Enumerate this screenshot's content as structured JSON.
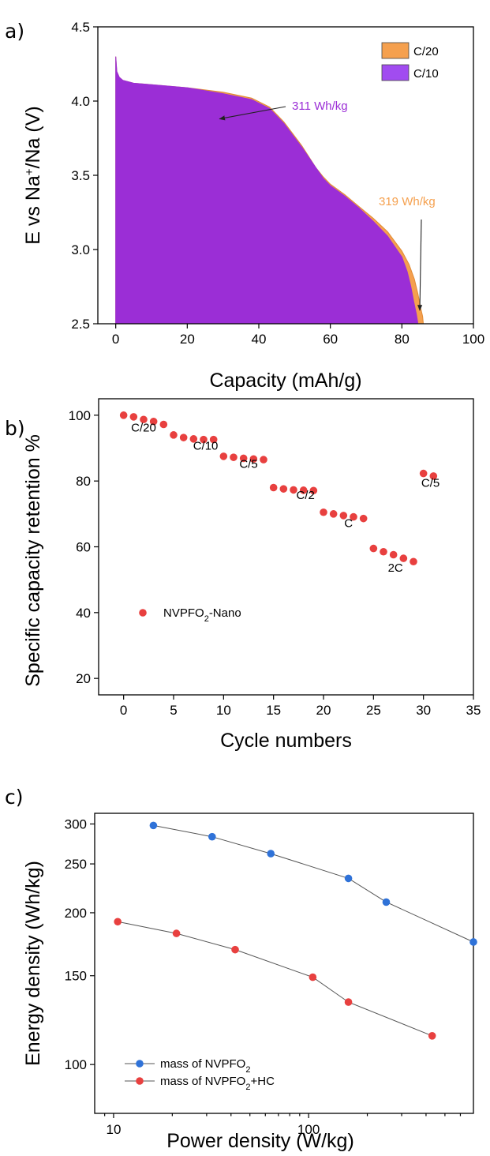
{
  "colors": {
    "c20": "#f5a04e",
    "c10": "#9b2ed6",
    "c10_legend": "#a14cf0",
    "red_series": "#e8403f",
    "blue_series": "#2f72d8",
    "connector": "#555555"
  },
  "chart_data": [
    {
      "panel": "a)",
      "type": "area",
      "ylabel_parts": [
        "E vs Na",
        "+",
        "/Na (V)"
      ],
      "xlabel": "Capacity (mAh/g)",
      "xlim": [
        -5,
        100
      ],
      "ylim": [
        2.5,
        4.5
      ],
      "xticks": [
        0,
        20,
        40,
        60,
        80,
        100
      ],
      "yticks": [
        2.5,
        3.0,
        3.5,
        4.0,
        4.5
      ],
      "ytick_labels": [
        "2.5",
        "3.0",
        "3.5",
        "4.0",
        "4.5"
      ],
      "legend": [
        "C/20",
        "C/10"
      ],
      "series": [
        {
          "name": "C/20",
          "x": [
            0,
            0.3,
            1,
            2,
            5,
            10,
            20,
            30,
            38,
            43,
            47,
            52,
            56,
            58,
            60,
            64,
            68,
            72,
            76,
            80,
            82,
            83.5,
            84.5,
            85.3,
            85.8,
            86
          ],
          "y": [
            4.3,
            4.2,
            4.16,
            4.14,
            4.12,
            4.11,
            4.09,
            4.06,
            4.02,
            3.96,
            3.86,
            3.7,
            3.55,
            3.49,
            3.44,
            3.37,
            3.29,
            3.21,
            3.12,
            2.99,
            2.9,
            2.8,
            2.7,
            2.6,
            2.55,
            2.5
          ]
        },
        {
          "name": "C/10",
          "x": [
            0,
            0.3,
            1,
            2,
            5,
            10,
            20,
            30,
            38,
            43,
            47,
            52,
            56,
            58,
            60,
            64,
            68,
            72,
            76,
            80,
            81.5,
            82.5,
            83.3,
            84,
            84.5
          ],
          "y": [
            4.3,
            4.2,
            4.16,
            4.14,
            4.12,
            4.11,
            4.09,
            4.05,
            4.01,
            3.95,
            3.85,
            3.69,
            3.55,
            3.48,
            3.43,
            3.36,
            3.28,
            3.19,
            3.09,
            2.95,
            2.85,
            2.75,
            2.65,
            2.57,
            2.5
          ]
        }
      ],
      "annotations": [
        {
          "text": "311 Wh/kg",
          "series": "C/10",
          "arrow_to": [
            29,
            3.88
          ]
        },
        {
          "text": "319 Wh/kg",
          "series": "C/20",
          "arrow_to": [
            85,
            2.59
          ]
        }
      ]
    },
    {
      "panel": "b)",
      "type": "scatter",
      "ylabel": "Specific capacity retention %",
      "xlabel": "Cycle numbers",
      "xlim": [
        -2.5,
        35
      ],
      "ylim": [
        15,
        105
      ],
      "xticks": [
        0,
        5,
        10,
        15,
        20,
        25,
        30,
        35
      ],
      "yticks": [
        20,
        40,
        60,
        80,
        100
      ],
      "legend": [
        "NVPFO",
        "2",
        "-Nano"
      ],
      "x": [
        0,
        1,
        2,
        3,
        4,
        5,
        6,
        7,
        8,
        9,
        10,
        11,
        12,
        13,
        14,
        15,
        16,
        17,
        18,
        19,
        20,
        21,
        22,
        23,
        24,
        25,
        26,
        27,
        28,
        29,
        30,
        31
      ],
      "y": [
        100,
        99.5,
        98.7,
        98.1,
        97.2,
        94,
        93.2,
        92.8,
        92.6,
        92.6,
        87.5,
        87.2,
        86.9,
        86.7,
        86.5,
        78,
        77.6,
        77.3,
        77.2,
        77.1,
        70.5,
        70,
        69.5,
        69.1,
        68.6,
        59.5,
        58.5,
        57.6,
        56.5,
        55.5,
        82.3,
        81.5
      ],
      "rate_labels": [
        {
          "text": "C/20",
          "x": 2,
          "y": 95
        },
        {
          "text": "C/10",
          "x": 8.2,
          "y": 89.5
        },
        {
          "text": "C/5",
          "x": 12.5,
          "y": 84
        },
        {
          "text": "C/2",
          "x": 18.2,
          "y": 74.5
        },
        {
          "text": "C",
          "x": 22.5,
          "y": 66
        },
        {
          "text": "2C",
          "x": 27.2,
          "y": 52.5
        },
        {
          "text": "C/5",
          "x": 30.7,
          "y": 78.2
        }
      ]
    },
    {
      "panel": "c)",
      "type": "line",
      "xlabel": "Power density (W/kg)",
      "ylabel": "Energy density (Wh/kg)",
      "xscale": "log",
      "yscale": "log",
      "xlim": [
        8,
        700
      ],
      "ylim": [
        80,
        315
      ],
      "xticks": [
        10,
        100
      ],
      "yticks": [
        100,
        150,
        200,
        250,
        300
      ],
      "series": [
        {
          "name_parts": [
            "mass of NVPFO",
            "2",
            ""
          ],
          "color_key": "blue_series",
          "x": [
            16,
            32,
            64,
            160,
            250,
            700
          ],
          "y": [
            298,
            283,
            262,
            234,
            210,
            175
          ]
        },
        {
          "name_parts": [
            "mass of NVPFO",
            "2",
            "+HC"
          ],
          "color_key": "red_series",
          "x": [
            10.5,
            21,
            42,
            105,
            160,
            430
          ],
          "y": [
            192,
            182,
            169,
            149,
            133,
            114
          ]
        }
      ]
    }
  ]
}
